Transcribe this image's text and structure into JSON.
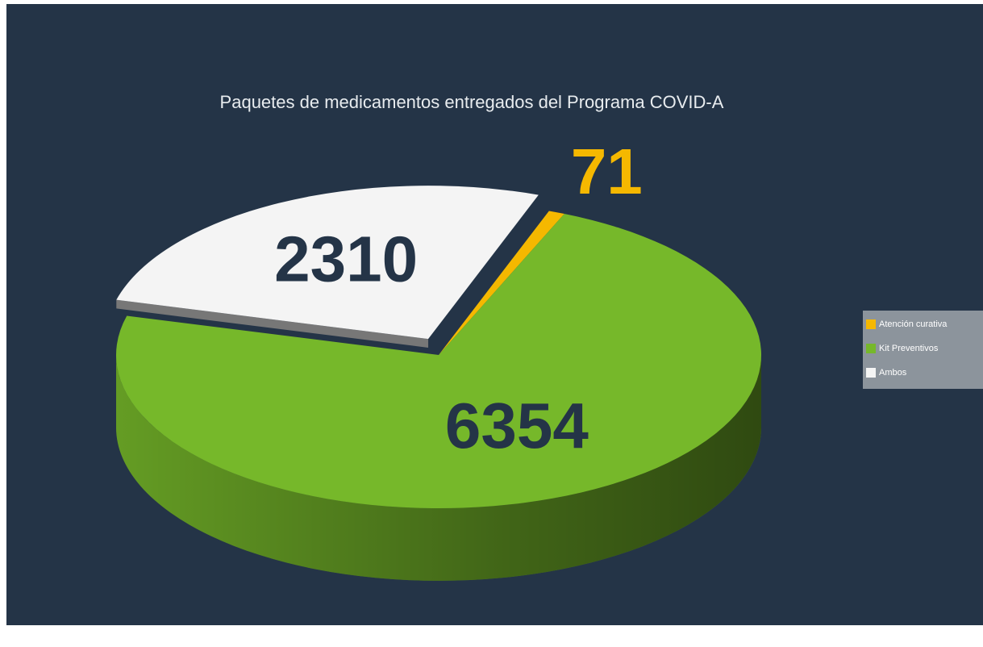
{
  "chart_data": {
    "type": "pie3d",
    "title": "Paquetes de medicamentos entregados del Programa COVID-A",
    "categories": [
      "Atención curativa",
      "Kit Preventivos",
      "Ambos"
    ],
    "values": [
      71,
      6354,
      2310
    ],
    "colors": [
      "#f5b800",
      "#76b82a",
      "#f4f4f4"
    ],
    "legend": "right"
  }
}
